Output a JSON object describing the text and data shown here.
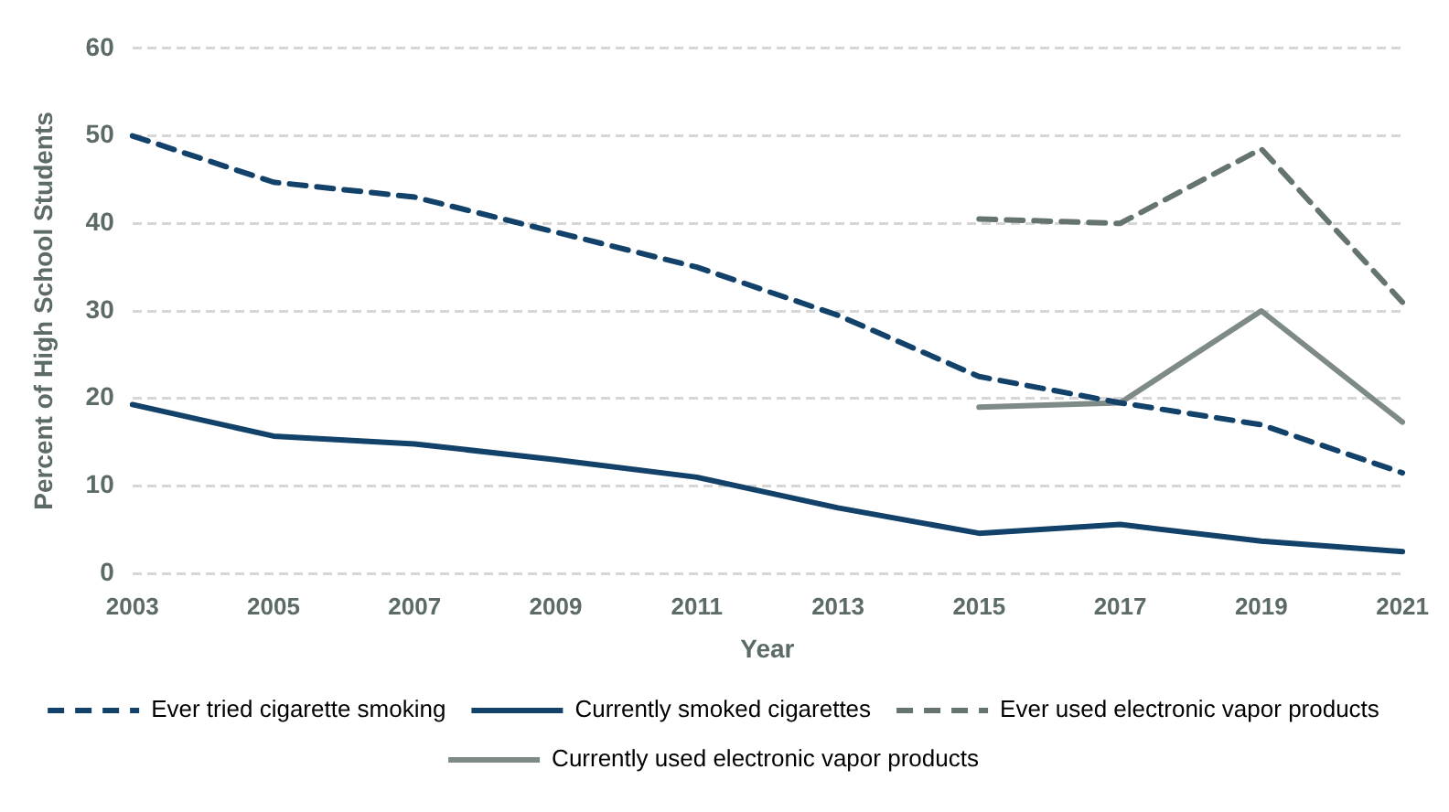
{
  "chart_data": {
    "type": "line",
    "xlabel": "Year",
    "ylabel": "Percent of High School Students",
    "categories": [
      "2003",
      "2005",
      "2007",
      "2009",
      "2011",
      "2013",
      "2015",
      "2017",
      "2019",
      "2021"
    ],
    "series": [
      {
        "name": "Ever tried cigarette smoking",
        "color": "#12416a",
        "line_style": "dashed",
        "values": [
          50,
          44.7,
          43,
          39,
          35,
          29.5,
          22.5,
          19.5,
          17,
          11.5
        ]
      },
      {
        "name": "Currently smoked cigarettes",
        "color": "#12416a",
        "line_style": "solid",
        "values": [
          19.3,
          15.7,
          14.8,
          13,
          11,
          7.5,
          4.6,
          5.6,
          3.7,
          2.5
        ]
      },
      {
        "name": "Ever used electronic vapor products",
        "color": "#65746f",
        "line_style": "dashed",
        "values": [
          null,
          null,
          null,
          null,
          null,
          null,
          40.5,
          40,
          48.5,
          31
        ]
      },
      {
        "name": "Currently used electronic vapor products",
        "color": "#7d8a87",
        "line_style": "solid",
        "values": [
          null,
          null,
          null,
          null,
          null,
          null,
          19,
          19.5,
          30,
          17.3
        ]
      }
    ],
    "ylim": [
      0,
      60
    ],
    "yticks": [
      0,
      10,
      20,
      30,
      40,
      50,
      60
    ],
    "grid": "y",
    "legend": "bottom",
    "marker": "none"
  }
}
